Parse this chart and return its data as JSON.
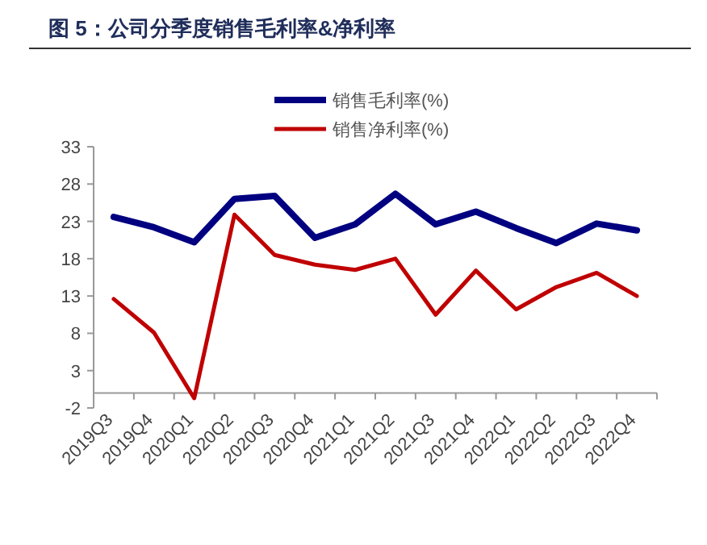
{
  "chart_data": {
    "type": "line",
    "title": "图 5：公司分季度销售毛利率&净利率",
    "categories": [
      "2019Q3",
      "2019Q4",
      "2020Q1",
      "2020Q2",
      "2020Q3",
      "2020Q4",
      "2021Q1",
      "2021Q2",
      "2021Q3",
      "2021Q4",
      "2022Q1",
      "2022Q2",
      "2022Q3",
      "2022Q4"
    ],
    "series": [
      {
        "name": "销售毛利率(%)",
        "color": "#000080",
        "values": [
          23.6,
          22.2,
          20.2,
          26.0,
          26.4,
          20.8,
          22.6,
          26.7,
          22.6,
          24.3,
          22.1,
          20.1,
          22.7,
          21.8
        ]
      },
      {
        "name": "销售净利率(%)",
        "color": "#c00000",
        "values": [
          12.6,
          8.1,
          -0.7,
          23.9,
          18.5,
          17.2,
          16.5,
          18.0,
          10.5,
          16.4,
          11.2,
          14.2,
          16.1,
          13.0
        ]
      }
    ],
    "ylim": [
      -2,
      33
    ],
    "yticks": [
      -2,
      3,
      8,
      13,
      18,
      23,
      28,
      33
    ],
    "legend": "top",
    "grid": false,
    "line_style": "solid",
    "marker": "none"
  }
}
